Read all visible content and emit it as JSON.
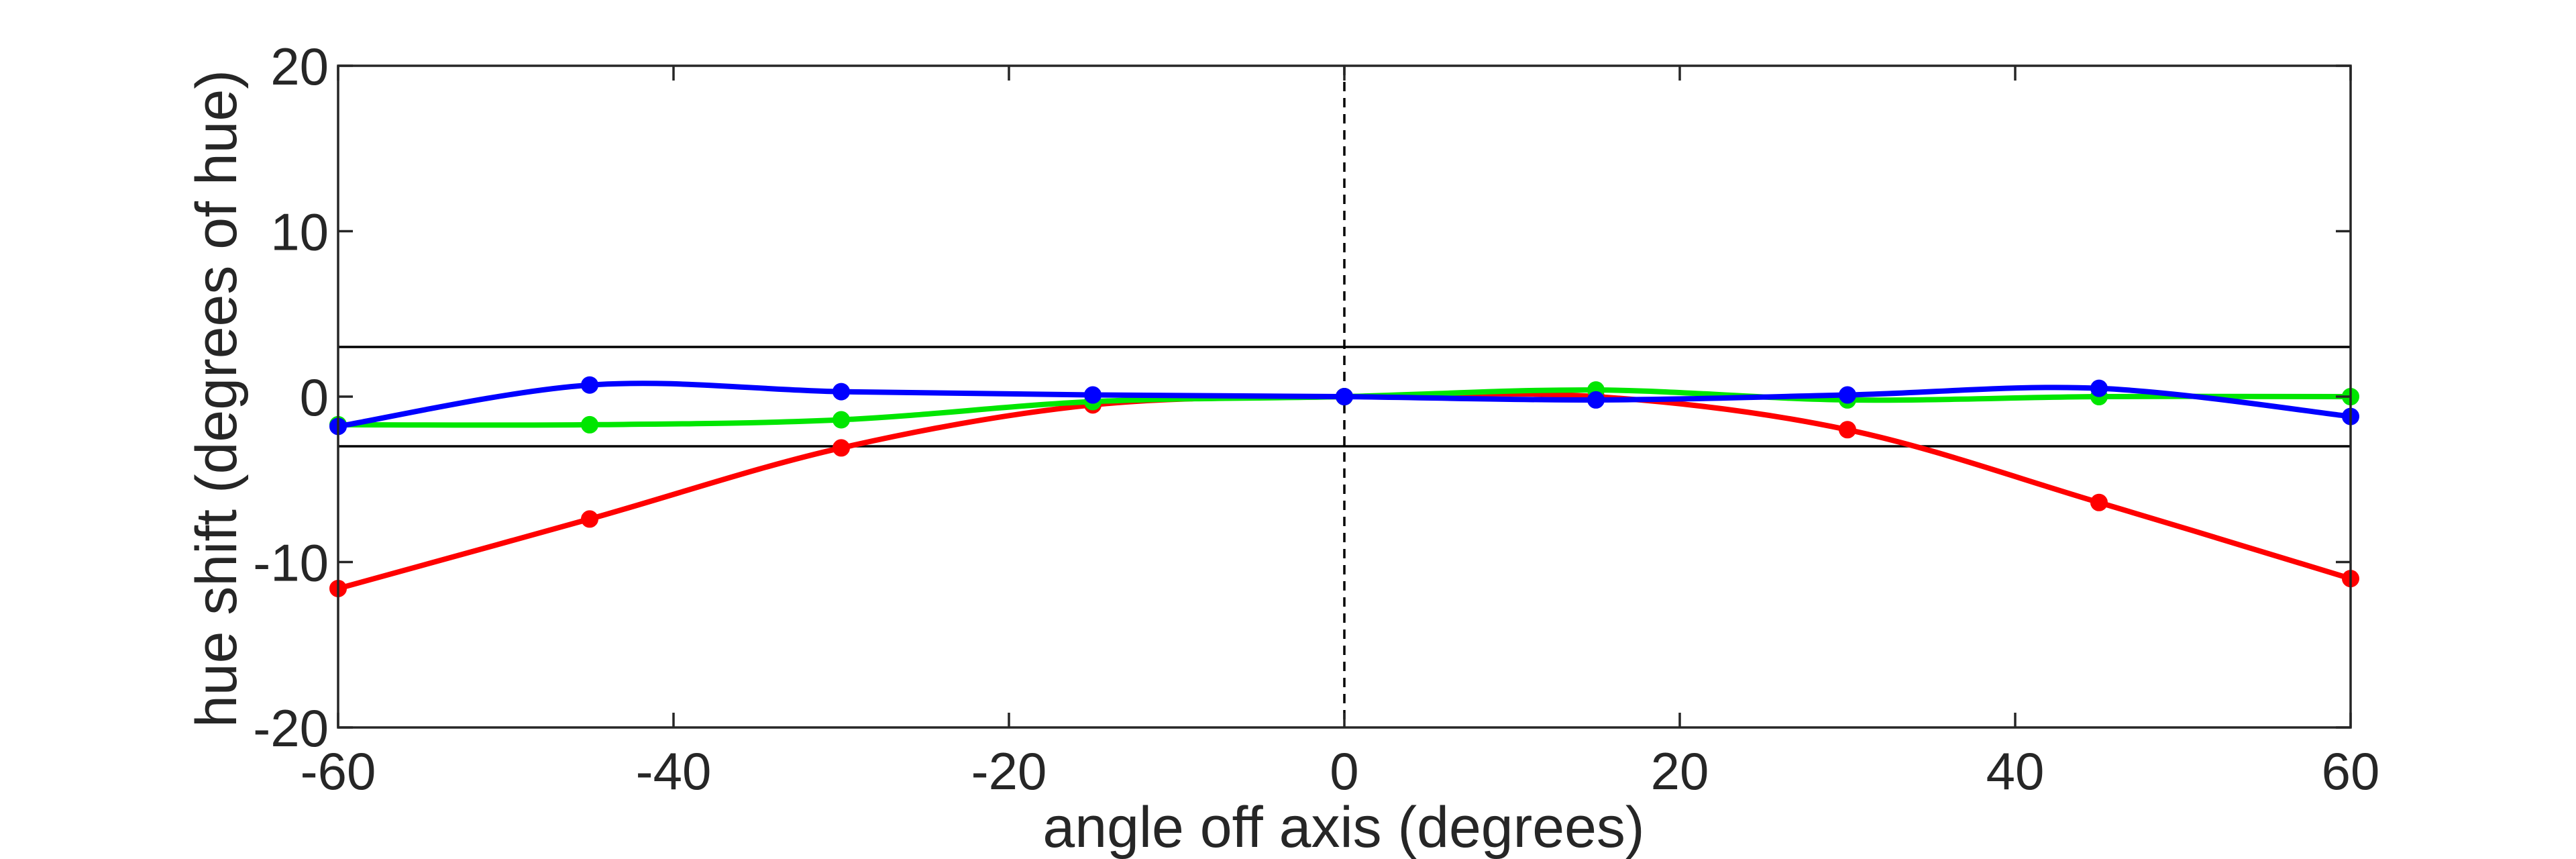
{
  "chart_data": {
    "type": "line",
    "title": "",
    "xlabel": "angle off axis (degrees)",
    "ylabel": "hue shift (degrees of hue)",
    "xlim": [
      -60,
      60
    ],
    "ylim": [
      -20,
      20
    ],
    "xticks": [
      -60,
      -40,
      -20,
      0,
      20,
      40,
      60
    ],
    "yticks": [
      -20,
      -10,
      0,
      10,
      20
    ],
    "x": [
      -60,
      -45,
      -30,
      -15,
      0,
      15,
      30,
      45,
      60
    ],
    "series": [
      {
        "color": "#ff0000",
        "values": [
          -11.6,
          -7.4,
          -3.1,
          -0.5,
          0,
          0,
          -2.0,
          -6.4,
          -11.0
        ]
      },
      {
        "color": "#00e600",
        "values": [
          -1.7,
          -1.7,
          -1.4,
          -0.3,
          0,
          0.4,
          -0.2,
          0,
          0
        ]
      },
      {
        "color": "#0000ff",
        "values": [
          -1.8,
          0.7,
          0.3,
          0.1,
          0,
          -0.2,
          0.1,
          0.5,
          -1.2
        ]
      }
    ],
    "reference_lines": {
      "horizontal": [
        3,
        -3
      ],
      "vertical_dashed": [
        0
      ]
    },
    "grid": false,
    "legend": "none"
  }
}
